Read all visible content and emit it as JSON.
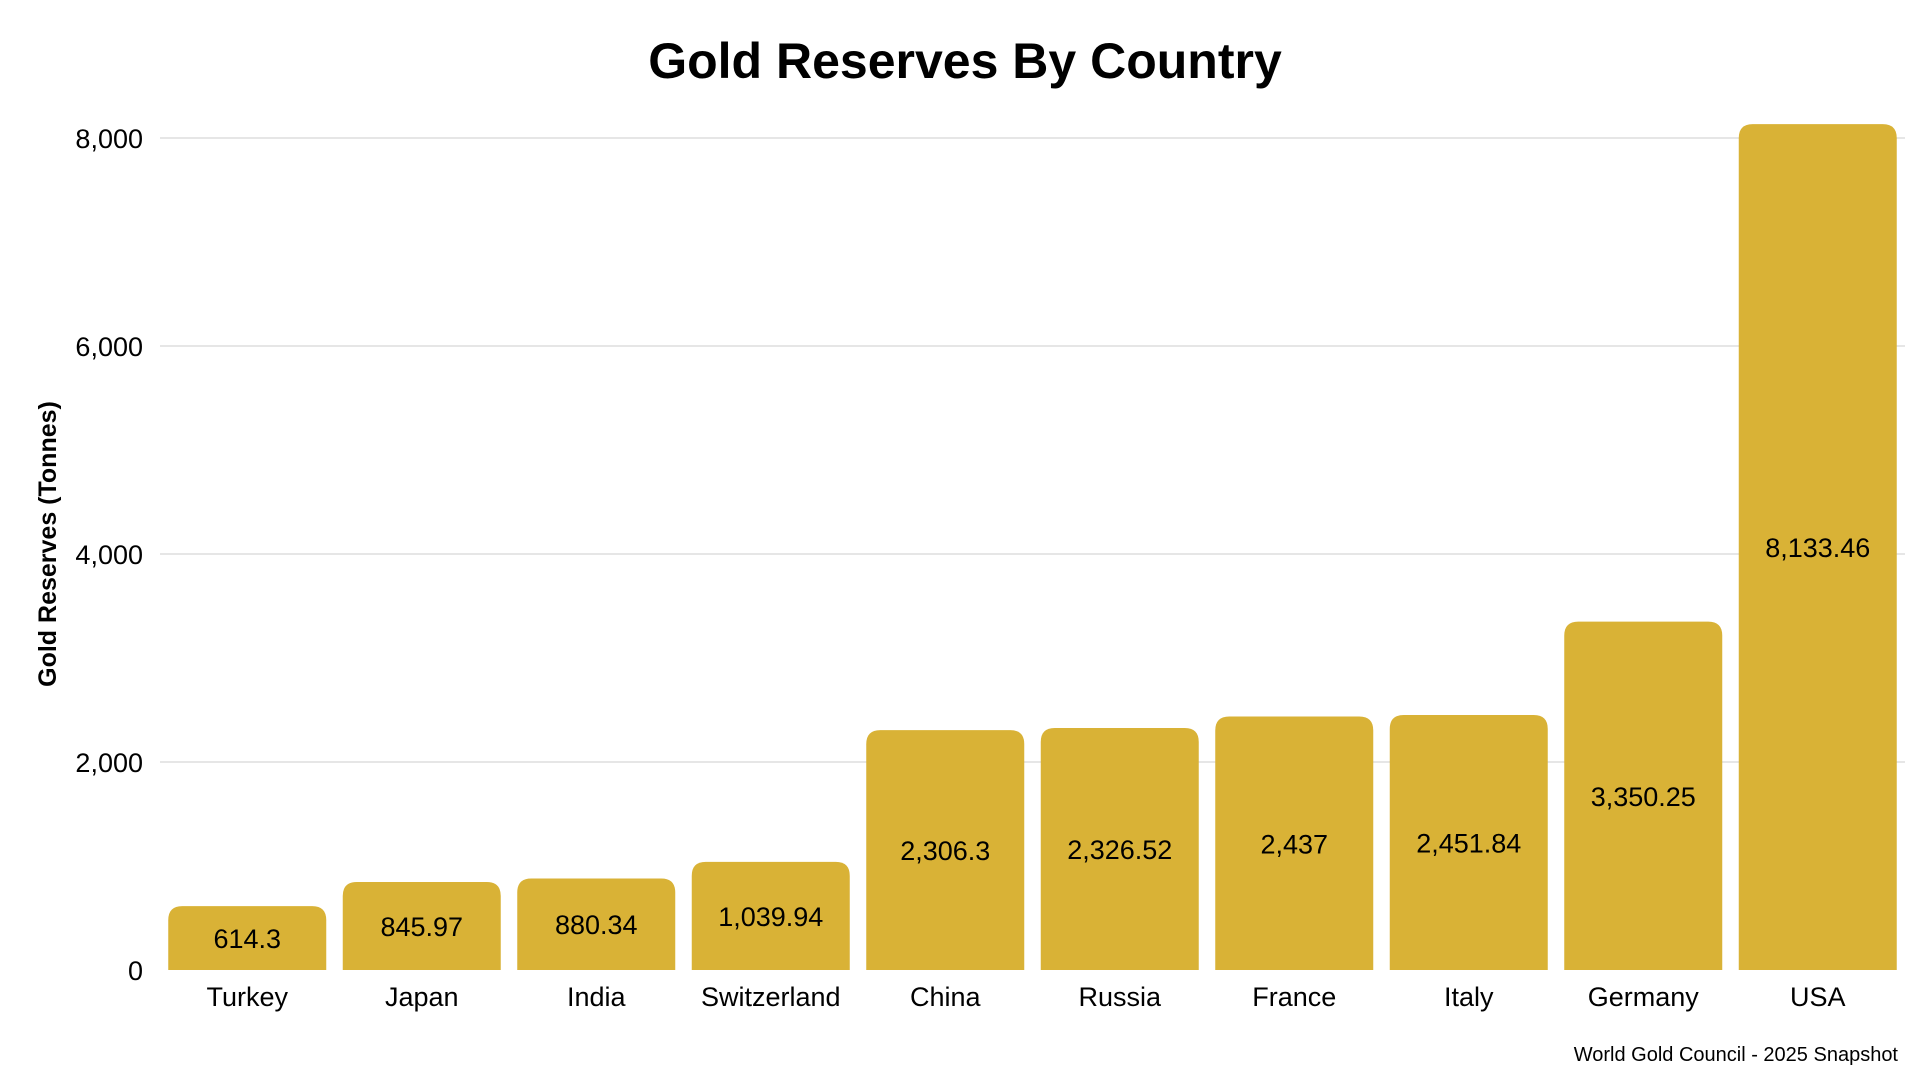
{
  "chart_data": {
    "type": "bar",
    "title": "Gold Reserves By Country",
    "ylabel": "Gold Reserves (Tonnes)",
    "xlabel": "",
    "categories": [
      "Turkey",
      "Japan",
      "India",
      "Switzerland",
      "China",
      "Russia",
      "France",
      "Italy",
      "Germany",
      "USA"
    ],
    "values": [
      614.3,
      845.97,
      880.34,
      1039.94,
      2306.3,
      2326.52,
      2437,
      2451.84,
      3350.25,
      8133.46
    ],
    "value_labels": [
      "614.3",
      "845.97",
      "880.34",
      "1,039.94",
      "2,306.3",
      "2,326.52",
      "2,437",
      "2,451.84",
      "3,350.25",
      "8,133.46"
    ],
    "ylim": [
      0,
      8000
    ],
    "yticks": [
      0,
      2000,
      4000,
      6000,
      8000
    ],
    "ytick_labels": [
      "0",
      "2,000",
      "4,000",
      "6,000",
      "8,000"
    ],
    "grid": true,
    "bar_color": "#d9b236",
    "source": "World Gold Council - 2025 Snapshot"
  }
}
